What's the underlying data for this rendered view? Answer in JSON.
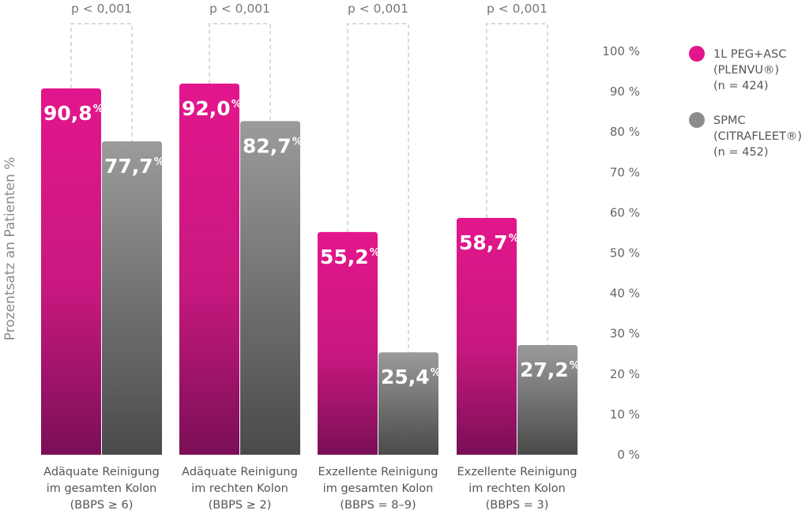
{
  "chart_data": {
    "type": "bar",
    "ylabel": "Prozentsatz an Patienten %",
    "ylim": [
      0,
      100
    ],
    "yticks": [
      {
        "value": 100,
        "label": "100 %"
      },
      {
        "value": 90,
        "label": "90 %"
      },
      {
        "value": 80,
        "label": "80 %"
      },
      {
        "value": 70,
        "label": "70 %"
      },
      {
        "value": 60,
        "label": "60 %"
      },
      {
        "value": 50,
        "label": "50 %"
      },
      {
        "value": 40,
        "label": "40 %"
      },
      {
        "value": 30,
        "label": "30 %"
      },
      {
        "value": 20,
        "label": "20 %"
      },
      {
        "value": 10,
        "label": "10 %"
      },
      {
        "value": 0,
        "label": "0 %"
      }
    ],
    "categories": [
      [
        "Adäquate Reinigung",
        "im gesamten Kolon",
        "(BBPS ≥ 6)"
      ],
      [
        "Adäquate Reinigung",
        "im rechten Kolon",
        "(BBPS ≥ 2)"
      ],
      [
        "Exzellente Reinigung",
        "im gesamten Kolon",
        "(BBPS = 8–9)"
      ],
      [
        "Exzellente Reinigung",
        "im rechten Kolon",
        "(BBPS = 3)"
      ]
    ],
    "series": [
      {
        "name": [
          "1L PEG+ASC",
          "(PLENVU®)",
          "(n = 424)"
        ],
        "color": "#e0168a",
        "values": [
          90.8,
          92.0,
          55.2,
          58.7
        ],
        "labels": [
          "90,8",
          "92,0",
          "55,2",
          "58,7"
        ]
      },
      {
        "name": [
          "SPMC",
          "(CITRAFLEET®)",
          "(n = 452)"
        ],
        "color": "#8c8c8c",
        "values": [
          77.7,
          82.7,
          25.4,
          27.2
        ],
        "labels": [
          "77,7",
          "82,7",
          "25,4",
          "27,2"
        ]
      }
    ],
    "value_suffix": "%",
    "comparisons": [
      "p < 0,001",
      "p < 0,001",
      "p < 0,001",
      "p < 0,001"
    ],
    "legend_position": "top-right",
    "grid": false
  }
}
